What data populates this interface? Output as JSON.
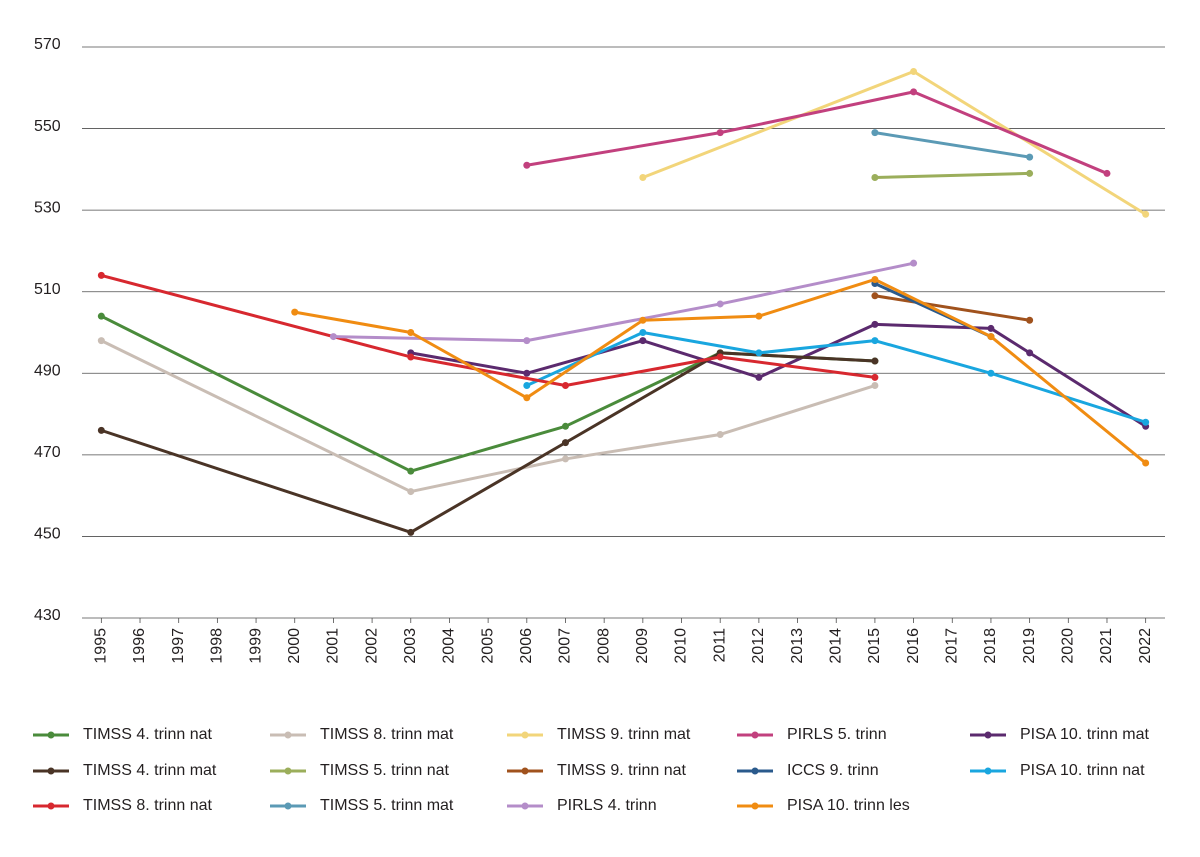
{
  "chart_data": {
    "type": "line",
    "xlim": [
      1994.5,
      2022.5
    ],
    "xticks": [
      1995,
      1996,
      1997,
      1998,
      1999,
      2000,
      2001,
      2002,
      2003,
      2004,
      2005,
      2006,
      2007,
      2008,
      2009,
      2010,
      2011,
      2012,
      2013,
      2014,
      2015,
      2016,
      2017,
      2018,
      2019,
      2020,
      2021,
      2022
    ],
    "ylim": [
      430,
      570
    ],
    "yticks": [
      430,
      450,
      470,
      490,
      510,
      530,
      550,
      570
    ],
    "grid": true,
    "legend": "bottom",
    "series": [
      {
        "name": "TIMSS 4. trinn nat",
        "color": "#4a8b3b",
        "x": [
          1995,
          2003,
          2007,
          2011,
          2015
        ],
        "values": [
          504,
          466,
          477,
          495,
          493
        ]
      },
      {
        "name": "TIMSS 8. trinn mat",
        "color": "#c9bdb4",
        "x": [
          1995,
          2003,
          2007,
          2011,
          2015
        ],
        "values": [
          498,
          461,
          469,
          475,
          487
        ]
      },
      {
        "name": "TIMSS 9. trinn mat",
        "color": "#f2d57a",
        "x": [
          2009,
          2016,
          2022
        ],
        "values": [
          538,
          564,
          529
        ]
      },
      {
        "name": "PIRLS 5. trinn",
        "color": "#c2407e",
        "x": [
          2006,
          2011,
          2016,
          2021
        ],
        "values": [
          541,
          549,
          559,
          539
        ]
      },
      {
        "name": "PISA 10. trinn mat",
        "color": "#5b2a6e",
        "x": [
          2003,
          2006,
          2009,
          2012,
          2015,
          2018,
          2019,
          2022
        ],
        "values": [
          495,
          490,
          498,
          489,
          502,
          501,
          495,
          477
        ]
      },
      {
        "name": "TIMSS 4. trinn mat",
        "color": "#4a3426",
        "x": [
          1995,
          2003,
          2007,
          2011,
          2015
        ],
        "values": [
          476,
          451,
          473,
          495,
          493
        ]
      },
      {
        "name": "TIMSS 5. trinn nat",
        "color": "#9bae5b",
        "x": [
          2015,
          2019
        ],
        "values": [
          538,
          539
        ]
      },
      {
        "name": "TIMSS 9. trinn nat",
        "color": "#a0521d",
        "x": [
          2015,
          2019
        ],
        "values": [
          509,
          503
        ]
      },
      {
        "name": "ICCS 9. trinn",
        "color": "#2a5a8c",
        "x": [
          2015,
          2018
        ],
        "values": [
          512,
          499
        ]
      },
      {
        "name": "PISA 10. trinn nat",
        "color": "#19a6df",
        "x": [
          2006,
          2009,
          2012,
          2015,
          2018,
          2022
        ],
        "values": [
          487,
          500,
          495,
          498,
          490,
          478
        ]
      },
      {
        "name": "TIMSS 8. trinn nat",
        "color": "#d7282f",
        "x": [
          1995,
          2003,
          2007,
          2011,
          2015
        ],
        "values": [
          514,
          494,
          487,
          494,
          489
        ]
      },
      {
        "name": "TIMSS 5. trinn mat",
        "color": "#5b9ab5",
        "x": [
          2015,
          2019
        ],
        "values": [
          549,
          543
        ]
      },
      {
        "name": "PIRLS 4. trinn",
        "color": "#b48dc9",
        "x": [
          2001,
          2006,
          2011,
          2016
        ],
        "values": [
          499,
          498,
          507,
          517
        ]
      },
      {
        "name": "PISA 10. trinn les",
        "color": "#f08c12",
        "x": [
          2000,
          2003,
          2006,
          2009,
          2012,
          2015,
          2018,
          2022
        ],
        "values": [
          505,
          500,
          484,
          503,
          504,
          513,
          499,
          468
        ]
      }
    ]
  }
}
